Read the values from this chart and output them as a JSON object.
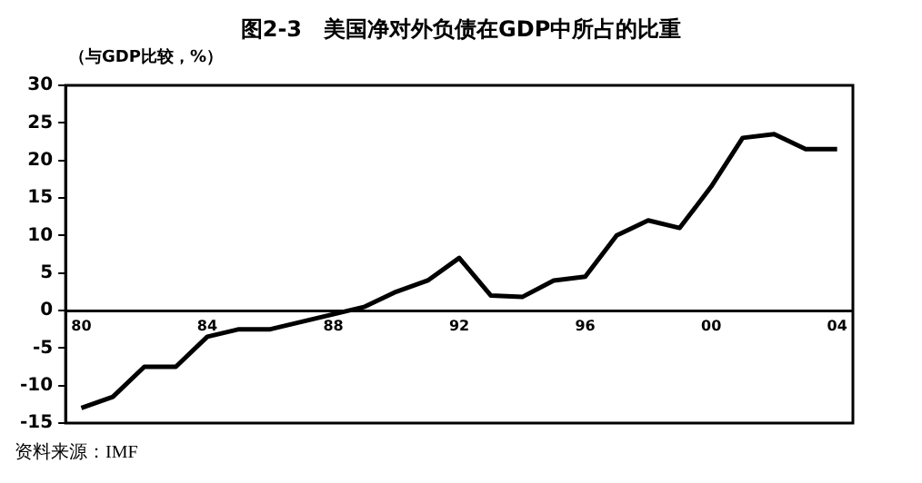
{
  "chart_data": {
    "type": "line",
    "title": "图2-3　美国净对外负债在GDP中所占的比重",
    "ylabel": "（与GDP比较，%）",
    "categories": [
      "80",
      null,
      null,
      null,
      "84",
      null,
      null,
      null,
      "88",
      null,
      null,
      null,
      "92",
      null,
      null,
      null,
      "96",
      null,
      null,
      null,
      "00",
      null,
      null,
      null,
      "04"
    ],
    "series": [
      {
        "color": "#000000",
        "values": [
          -13,
          -11.5,
          -7.5,
          -7.5,
          -3.5,
          -2.5,
          -2.5,
          -1.5,
          -0.5,
          0.5,
          2.5,
          4,
          7,
          2,
          1.8,
          4,
          4.5,
          10,
          12,
          11,
          16.5,
          23,
          23.5,
          21.5,
          21.5
        ]
      }
    ],
    "ylim": [
      -15,
      30
    ],
    "yticks": [
      -15,
      -10,
      -5,
      0,
      5,
      10,
      15,
      20,
      25,
      30
    ],
    "grid": false,
    "legend": false,
    "marker": "none",
    "line_style": "solid",
    "annotations": [
      "资料来源：IMF"
    ]
  }
}
